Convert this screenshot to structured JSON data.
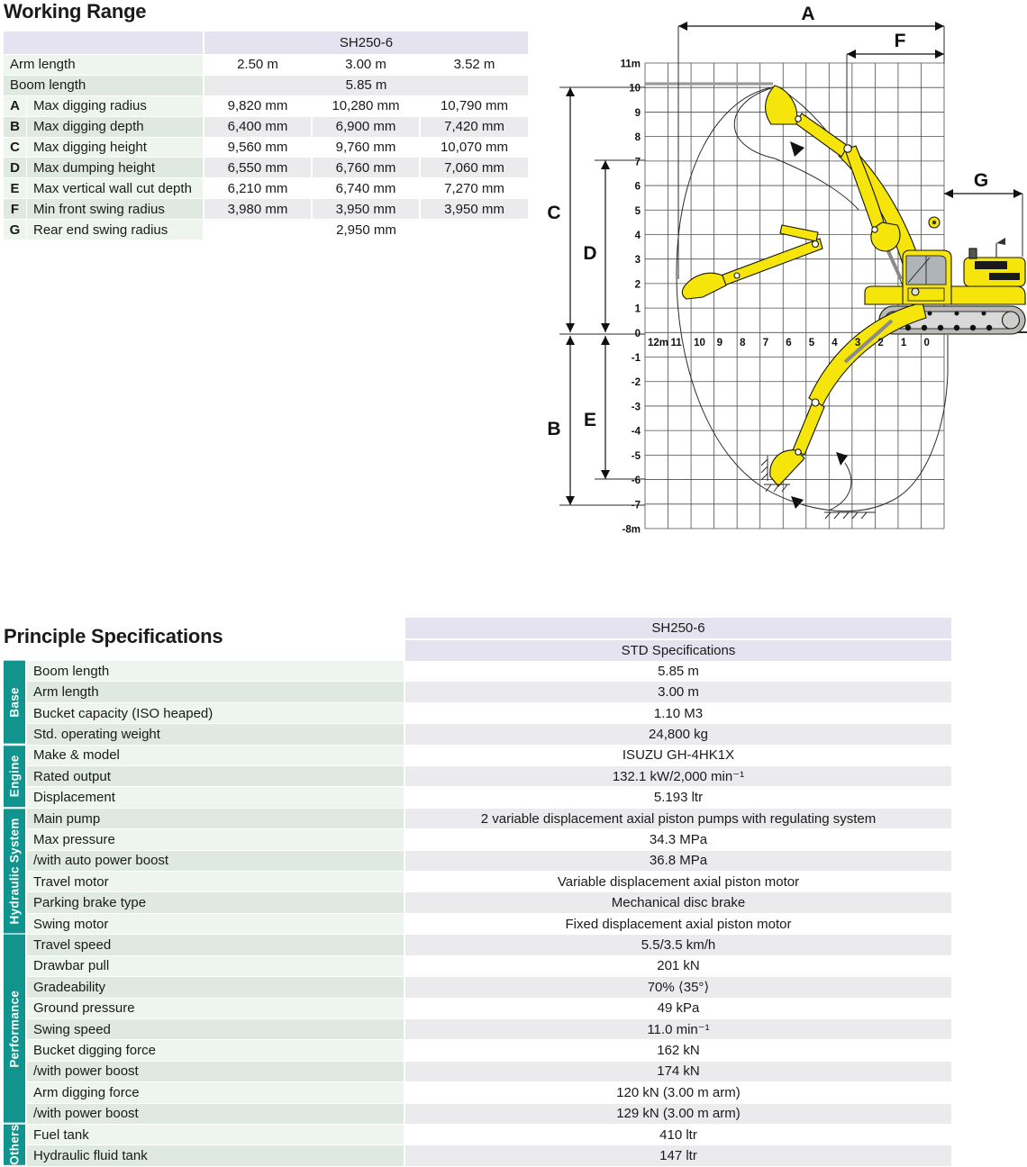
{
  "working_range": {
    "title": "Working Range",
    "model": "SH250-6",
    "arm_label": "Arm length",
    "arm_values": [
      "2.50 m",
      "3.00 m",
      "3.52 m"
    ],
    "boom_label": "Boom length",
    "boom_value": "5.85 m",
    "rows": [
      {
        "key": "A",
        "label": "Max digging radius",
        "values": [
          "9,820 mm",
          "10,280 mm",
          "10,790 mm"
        ]
      },
      {
        "key": "B",
        "label": "Max digging depth",
        "values": [
          "6,400 mm",
          "6,900 mm",
          "7,420 mm"
        ]
      },
      {
        "key": "C",
        "label": "Max digging height",
        "values": [
          "9,560 mm",
          "9,760 mm",
          "10,070 mm"
        ]
      },
      {
        "key": "D",
        "label": "Max dumping height",
        "values": [
          "6,550 mm",
          "6,760 mm",
          "7,060 mm"
        ]
      },
      {
        "key": "E",
        "label": "Max vertical wall cut depth",
        "values": [
          "6,210 mm",
          "6,740 mm",
          "7,270 mm"
        ]
      },
      {
        "key": "F",
        "label": "Min front swing radius",
        "values": [
          "3,980 mm",
          "3,950 mm",
          "3,950 mm"
        ]
      },
      {
        "key": "G",
        "label": "Rear end swing radius",
        "span_value": "2,950 mm"
      }
    ]
  },
  "diagram": {
    "x_axis_labels": [
      "12m",
      "11",
      "10",
      "9",
      "8",
      "7",
      "6",
      "5",
      "4",
      "3",
      "2",
      "1",
      "0"
    ],
    "y_axis_labels": [
      "11m",
      "10",
      "9",
      "8",
      "7",
      "6",
      "5",
      "4",
      "3",
      "2",
      "1",
      "0",
      "-1",
      "-2",
      "-3",
      "-4",
      "-5",
      "-6",
      "-7",
      "-8m"
    ],
    "dimension_labels": [
      "A",
      "F",
      "G",
      "C",
      "D",
      "B",
      "E"
    ]
  },
  "principle_specifications": {
    "title": "Principle Specifications",
    "header_model": "SH250-6",
    "header_spec": "STD Specifications",
    "sections": [
      {
        "name": "Base",
        "rows": [
          {
            "label": "Boom length",
            "value": "5.85 m"
          },
          {
            "label": "Arm length",
            "value": "3.00 m"
          },
          {
            "label": "Bucket capacity (ISO heaped)",
            "value": "1.10 M3"
          },
          {
            "label": "Std. operating weight",
            "value": "24,800 kg"
          }
        ]
      },
      {
        "name": "Engine",
        "rows": [
          {
            "label": "Make & model",
            "value": "ISUZU GH-4HK1X"
          },
          {
            "label": "Rated output",
            "value": "132.1 kW/2,000 min⁻¹"
          },
          {
            "label": "Displacement",
            "value": "5.193 ltr"
          }
        ]
      },
      {
        "name": "Hydraulic System",
        "rows": [
          {
            "label": "Main pump",
            "value": "2 variable displacement axial piston pumps with regulating system"
          },
          {
            "label": "Max pressure",
            "value": "34.3 MPa"
          },
          {
            "label": "/with auto power boost",
            "value": "36.8 MPa"
          },
          {
            "label": "Travel motor",
            "value": "Variable displacement axial piston motor"
          },
          {
            "label": "Parking brake type",
            "value": "Mechanical disc brake"
          },
          {
            "label": "Swing motor",
            "value": "Fixed displacement axial piston motor"
          }
        ]
      },
      {
        "name": "Performance",
        "rows": [
          {
            "label": "Travel speed",
            "value": "5.5/3.5 km/h"
          },
          {
            "label": "Drawbar pull",
            "value": "201 kN"
          },
          {
            "label": "Gradeability",
            "value": "70% ⟨35°⟩"
          },
          {
            "label": "Ground pressure",
            "value": "49 kPa"
          },
          {
            "label": "Swing speed",
            "value": "11.0 min⁻¹"
          },
          {
            "label": "Bucket digging force",
            "value": "162 kN"
          },
          {
            "label": "/with power boost",
            "value": "174 kN"
          },
          {
            "label": "Arm digging force",
            "value": "120 kN (3.00 m arm)"
          },
          {
            "label": "/with power boost",
            "value": "129 kN (3.00 m arm)"
          }
        ]
      },
      {
        "name": "Others",
        "rows": [
          {
            "label": "Fuel tank",
            "value": "410 ltr"
          },
          {
            "label": "Hydraulic fluid tank",
            "value": "147 ltr"
          }
        ]
      }
    ]
  }
}
